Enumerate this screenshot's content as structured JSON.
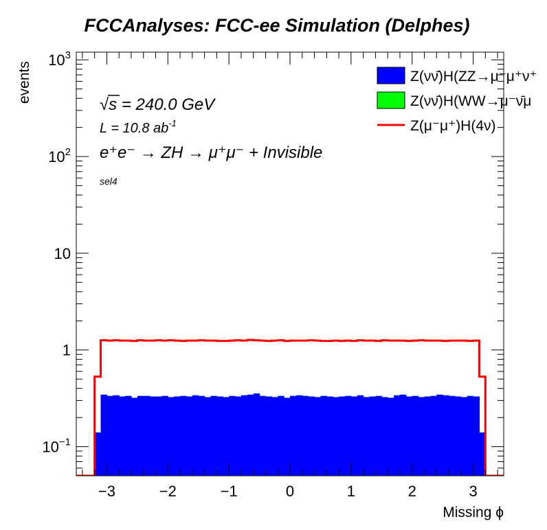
{
  "chart_data": {
    "type": "histogram",
    "title": "FCCAnalyses: FCC-ee Simulation (Delphes)",
    "xlabel": "Missing ϕ",
    "ylabel": "events",
    "xlim": [
      -3.5,
      3.5
    ],
    "ylim": [
      0.05,
      1200
    ],
    "yscale": "log",
    "grid": false,
    "legend_position": "top-right",
    "x_ticks": [
      -3,
      -2,
      -1,
      0,
      1,
      2,
      3
    ],
    "x_tick_labels": [
      "−3",
      "−2",
      "−1",
      "0",
      "1",
      "2",
      "3"
    ],
    "y_ticks": [
      {
        "value": 0.1,
        "base": "10",
        "exp": "−1"
      },
      {
        "value": 1,
        "base": "1",
        "exp": ""
      },
      {
        "value": 10,
        "base": "10",
        "exp": ""
      },
      {
        "value": 100,
        "base": "10",
        "exp": "2"
      },
      {
        "value": 1000,
        "base": "10",
        "exp": "3"
      }
    ],
    "annotations": {
      "sqrt_s_symbol": "√s",
      "sqrt_s_text": " = 240.0 GeV",
      "lumi_text": "L = 10.8 ab",
      "lumi_exp": "-1",
      "process_text": "e⁺e⁻ → ZH → μ⁺μ⁻ + Invisible",
      "selection": "sel4"
    },
    "colors": {
      "zz_fill": "#0000ff",
      "ww_fill": "#00ff00",
      "signal_line": "#ff0000"
    },
    "series": [
      {
        "name": "Z(νν̄)H(ZZ→μ⁻μ⁺ν⁺",
        "kind": "stacked-fill",
        "color": "#0000ff",
        "bin_edges": [
          -3.2,
          3.2
        ],
        "n_bins": 64,
        "values": [
          0.14,
          0.345,
          0.335,
          0.34,
          0.33,
          0.335,
          0.32,
          0.335,
          0.335,
          0.33,
          0.33,
          0.335,
          0.325,
          0.33,
          0.335,
          0.33,
          0.34,
          0.335,
          0.325,
          0.335,
          0.33,
          0.325,
          0.335,
          0.33,
          0.34,
          0.345,
          0.355,
          0.335,
          0.33,
          0.325,
          0.335,
          0.32,
          0.335,
          0.34,
          0.335,
          0.33,
          0.325,
          0.335,
          0.33,
          0.325,
          0.33,
          0.335,
          0.33,
          0.34,
          0.325,
          0.33,
          0.335,
          0.325,
          0.32,
          0.34,
          0.345,
          0.33,
          0.335,
          0.325,
          0.33,
          0.335,
          0.345,
          0.34,
          0.335,
          0.33,
          0.325,
          0.335,
          0.33,
          0.14
        ]
      },
      {
        "name": "Z(νν̄)H(WW→μ⁻ν̄μ",
        "kind": "stacked-fill",
        "color": "#00ff00",
        "bin_edges": [
          -3.2,
          3.2
        ],
        "n_bins": 64,
        "values": [
          0.001,
          0.001,
          0.001,
          0.001,
          0.001,
          0.001,
          0.001,
          0.001,
          0.001,
          0.001,
          0.001,
          0.001,
          0.001,
          0.001,
          0.001,
          0.001,
          0.001,
          0.001,
          0.001,
          0.001,
          0.001,
          0.001,
          0.001,
          0.001,
          0.001,
          0.001,
          0.001,
          0.001,
          0.001,
          0.001,
          0.001,
          0.001,
          0.001,
          0.001,
          0.001,
          0.001,
          0.001,
          0.001,
          0.001,
          0.001,
          0.001,
          0.001,
          0.001,
          0.001,
          0.001,
          0.001,
          0.001,
          0.001,
          0.001,
          0.001,
          0.001,
          0.001,
          0.001,
          0.001,
          0.001,
          0.001,
          0.001,
          0.001,
          0.001,
          0.001,
          0.001,
          0.001,
          0.001,
          0.001
        ]
      },
      {
        "name": "Z(μ⁻μ⁺)H(4ν)",
        "kind": "line",
        "color": "#ff0000",
        "bin_edges": [
          -3.2,
          3.2
        ],
        "n_bins": 64,
        "values": [
          0.53,
          1.26,
          1.25,
          1.26,
          1.25,
          1.25,
          1.24,
          1.26,
          1.25,
          1.25,
          1.26,
          1.25,
          1.26,
          1.25,
          1.24,
          1.25,
          1.25,
          1.26,
          1.25,
          1.25,
          1.24,
          1.24,
          1.25,
          1.26,
          1.25,
          1.27,
          1.26,
          1.25,
          1.24,
          1.25,
          1.26,
          1.24,
          1.25,
          1.25,
          1.25,
          1.26,
          1.25,
          1.24,
          1.24,
          1.25,
          1.24,
          1.25,
          1.24,
          1.26,
          1.25,
          1.25,
          1.24,
          1.26,
          1.25,
          1.25,
          1.25,
          1.24,
          1.25,
          1.26,
          1.25,
          1.25,
          1.25,
          1.24,
          1.25,
          1.25,
          1.25,
          1.24,
          1.25,
          0.53
        ]
      }
    ]
  }
}
